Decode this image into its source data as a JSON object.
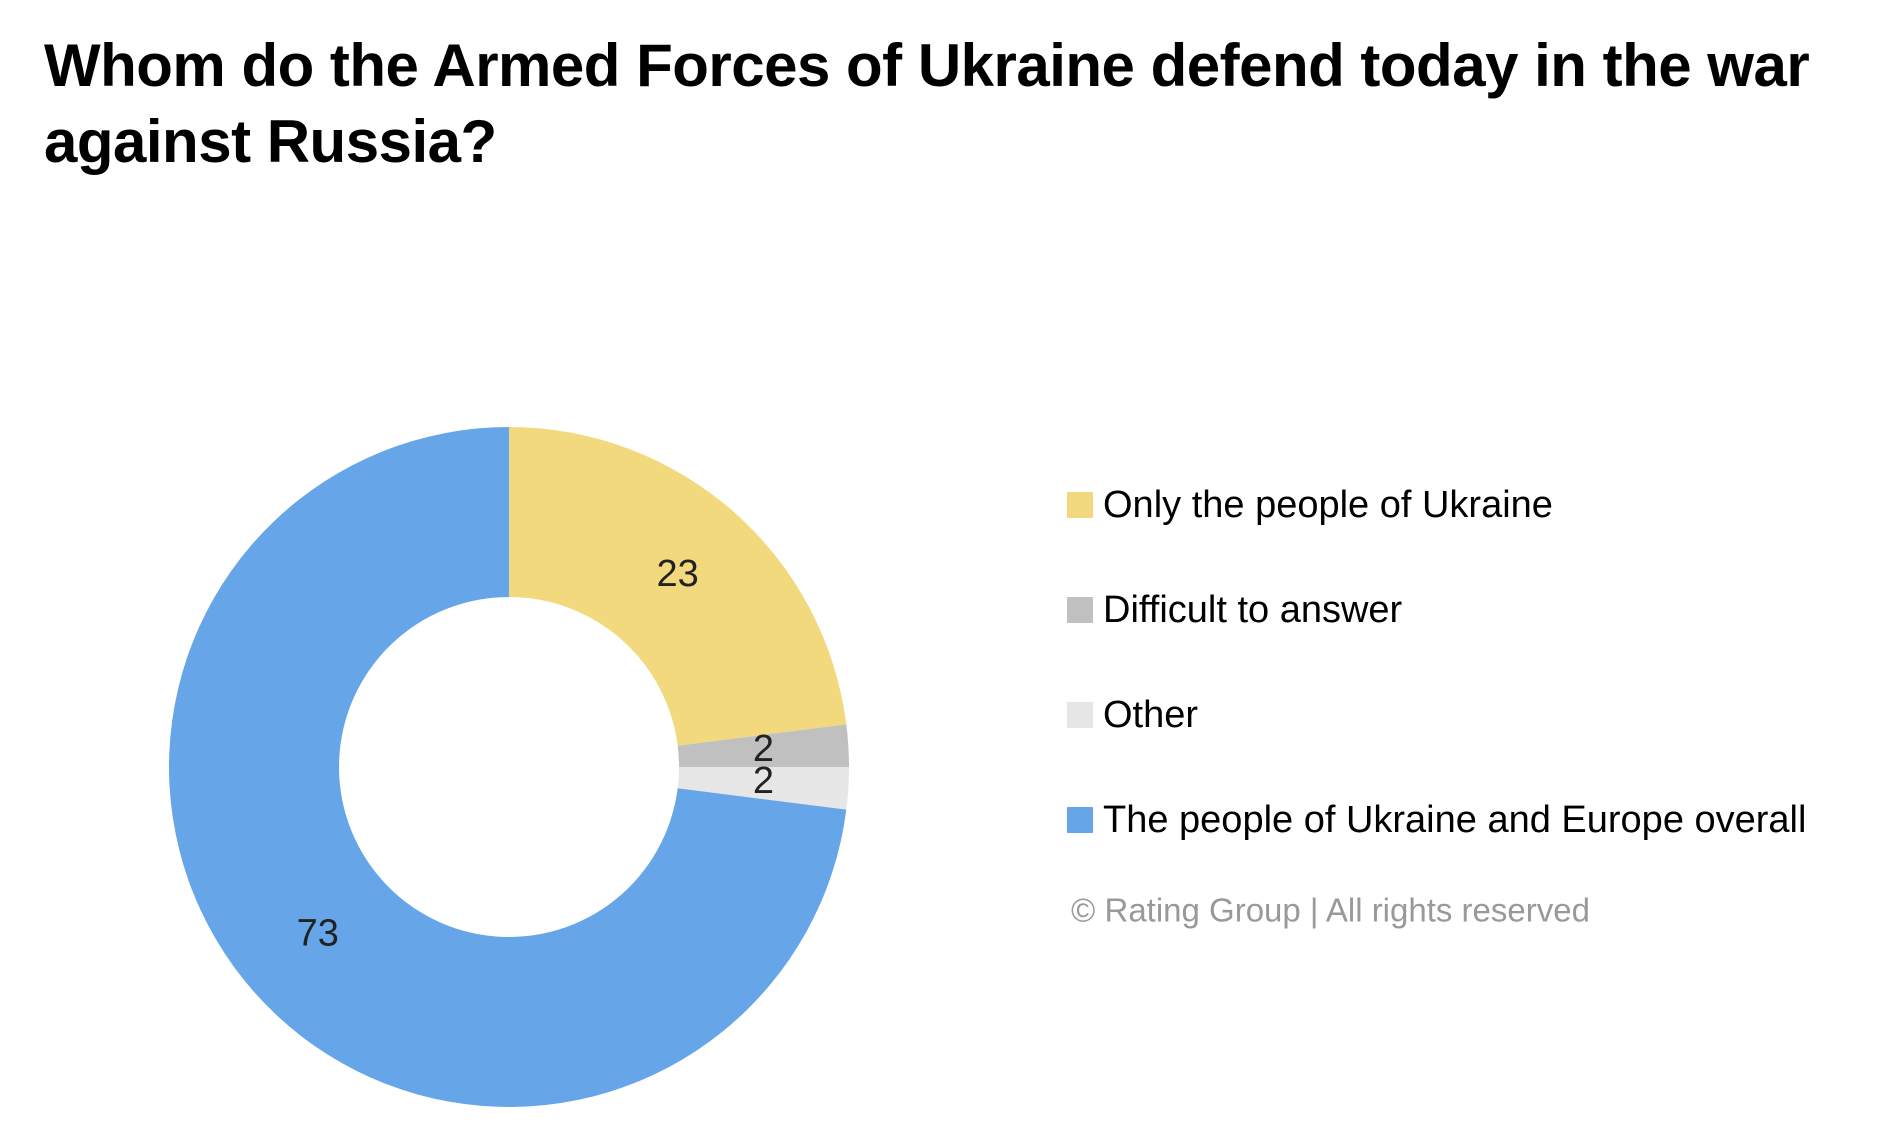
{
  "chart_data": {
    "type": "donut",
    "title": "Whom do the Armed Forces of Ukraine defend today in the war against Russia?",
    "categories": [
      "Only the people of Ukraine",
      "Difficult to answer",
      "Other",
      "The people of Ukraine and Europe overall"
    ],
    "values": [
      23,
      2,
      2,
      73
    ],
    "colors": [
      "#f2d97e",
      "#c0c0c0",
      "#e6e6e6",
      "#66a6e8"
    ],
    "legend": "right",
    "source": "© Rating Group | All rights reserved"
  }
}
